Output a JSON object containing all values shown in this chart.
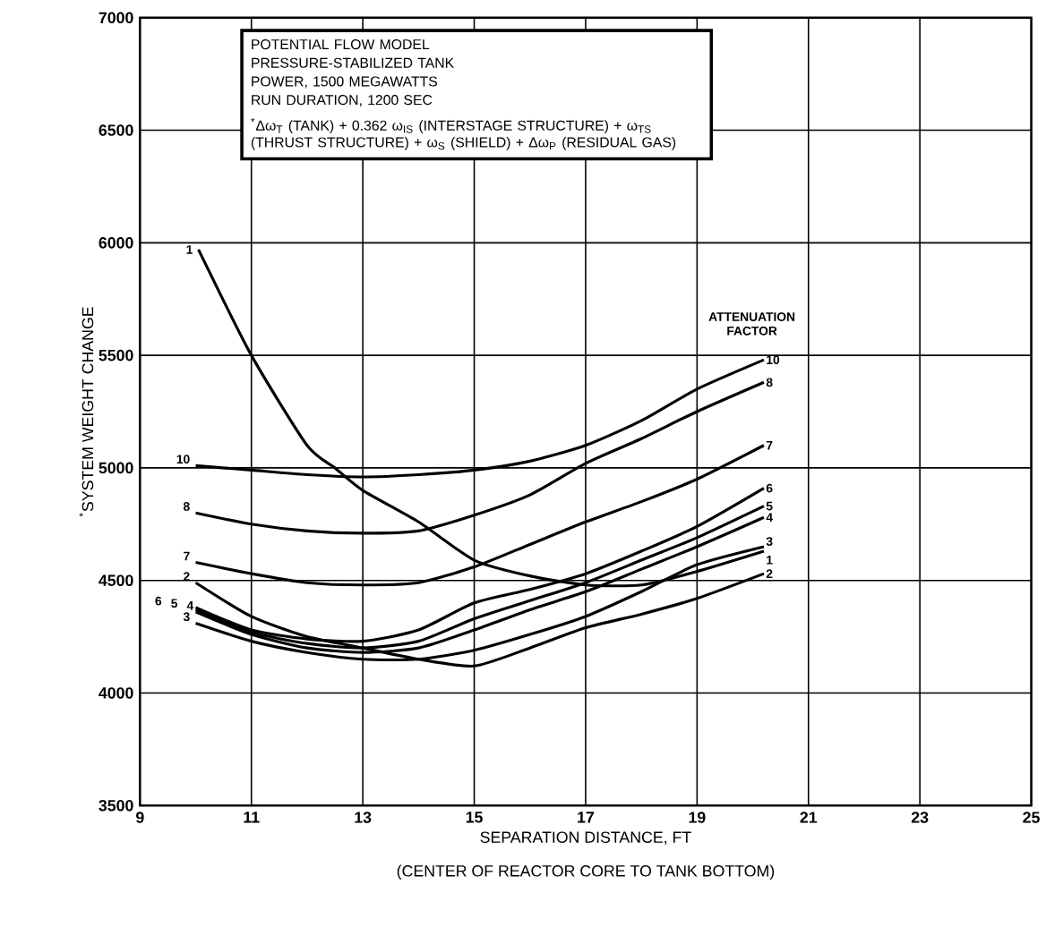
{
  "chart_data": {
    "type": "line",
    "xlabel": "SEPARATION DISTANCE, FT",
    "ylabel": "$^{*}$SYSTEM WEIGHT CHANGE",
    "legend_title": "ATTENUATION FACTOR",
    "annotations": [
      "(CENTER OF REACTOR CORE TO TANK BOTTOM)",
      "POTENTIAL FLOW MODEL",
      "PRESSURE-STABILIZED TANK",
      "POWER, 1500 MEGAWATTS",
      "RUN DURATION, 1200 SEC",
      "$^{*}$Δω$_{T}$ (TANK) + 0.362 ω$_{IS}$ (INTERSTAGE STRUCTURE) + ω$_{TS}$ (THRUST STRUCTURE) + ω$_{S}$ (SHIELD) + Δω$_{P}$ (RESIDUAL GAS)"
    ],
    "x": [
      10,
      11,
      12,
      13,
      14,
      15,
      16,
      17,
      18,
      19,
      20.2
    ],
    "series": [
      {
        "name": "1",
        "color": "#000000",
        "x": [
          10.05,
          11,
          12,
          12.5,
          13,
          14,
          15,
          16,
          17,
          18,
          19,
          20.2
        ],
        "values": [
          5970,
          5500,
          5100,
          5000,
          4900,
          4760,
          4590,
          4520,
          4480,
          4480,
          4540,
          4630
        ]
      },
      {
        "name": "2",
        "color": "#000000",
        "values": [
          4490,
          4340,
          4250,
          4200,
          4150,
          4120,
          4200,
          4290,
          4350,
          4420,
          4530
        ]
      },
      {
        "name": "3",
        "color": "#000000",
        "values": [
          4310,
          4230,
          4180,
          4150,
          4150,
          4190,
          4260,
          4340,
          4450,
          4570,
          4650
        ]
      },
      {
        "name": "4",
        "color": "#000000",
        "values": [
          4360,
          4260,
          4200,
          4180,
          4200,
          4280,
          4370,
          4450,
          4550,
          4650,
          4780
        ]
      },
      {
        "name": "5",
        "color": "#000000",
        "values": [
          4370,
          4270,
          4220,
          4200,
          4230,
          4330,
          4410,
          4490,
          4590,
          4690,
          4830
        ]
      },
      {
        "name": "6",
        "color": "#000000",
        "values": [
          4380,
          4280,
          4240,
          4230,
          4280,
          4400,
          4460,
          4530,
          4630,
          4740,
          4910
        ]
      },
      {
        "name": "7",
        "color": "#000000",
        "values": [
          4580,
          4530,
          4490,
          4480,
          4490,
          4560,
          4660,
          4760,
          4850,
          4950,
          5100
        ]
      },
      {
        "name": "8",
        "color": "#000000",
        "values": [
          4800,
          4750,
          4720,
          4710,
          4720,
          4790,
          4880,
          5020,
          5130,
          5250,
          5380
        ]
      },
      {
        "name": "10",
        "color": "#000000",
        "values": [
          5010,
          4990,
          4970,
          4960,
          4970,
          4990,
          5030,
          5100,
          5210,
          5350,
          5480
        ]
      }
    ],
    "xlim": [
      9,
      25
    ],
    "ylim": [
      3500,
      7000
    ],
    "xticks": [
      9,
      11,
      13,
      15,
      17,
      19,
      21,
      23,
      25
    ],
    "yticks": [
      3500,
      4000,
      4500,
      5000,
      5500,
      6000,
      6500,
      7000
    ],
    "grid": true,
    "line_style": "solid"
  }
}
